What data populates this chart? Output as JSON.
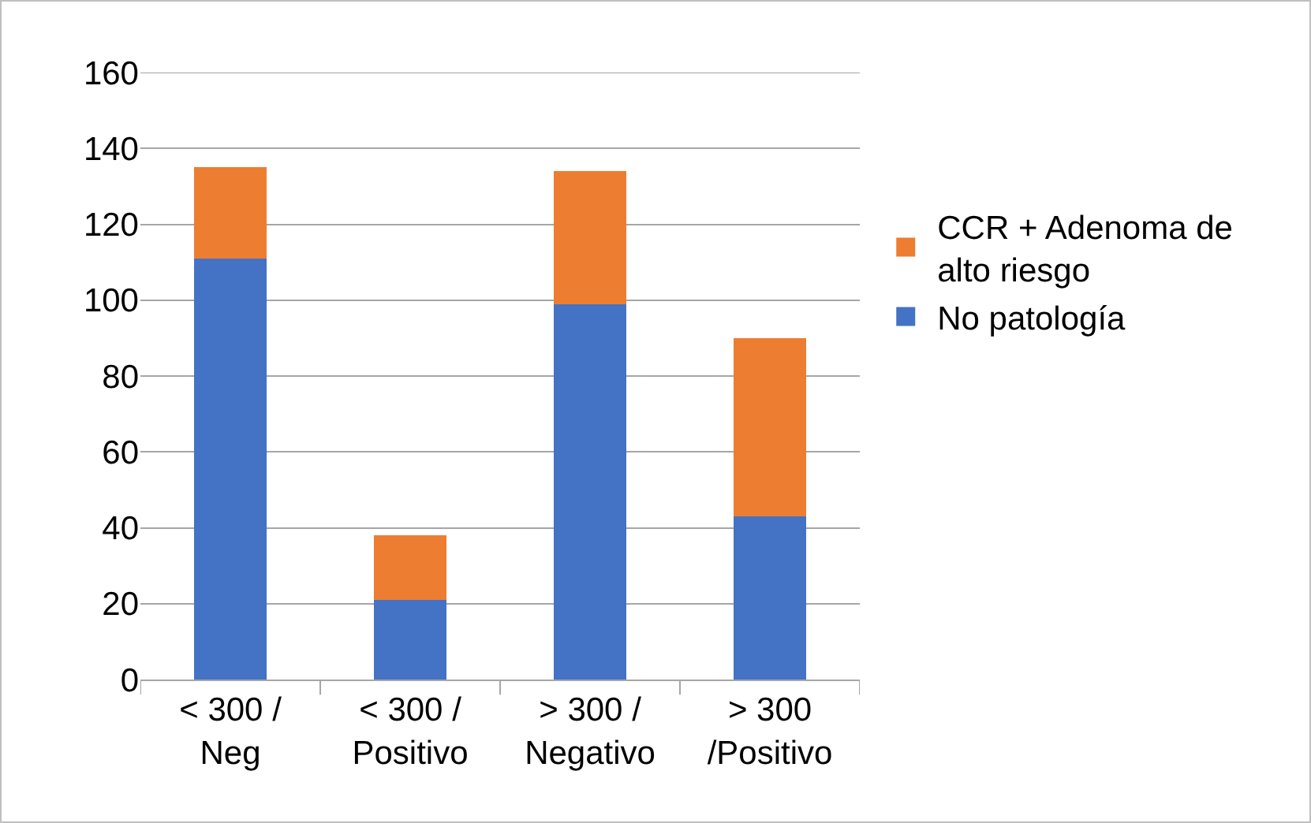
{
  "chart_data": {
    "type": "bar",
    "stacked": true,
    "categories": [
      "< 300 / Neg",
      "< 300 / Positivo",
      "> 300 / Negativo",
      "> 300 /Positivo"
    ],
    "series": [
      {
        "name": "No patología",
        "color": "#4472c4",
        "values": [
          111,
          21,
          99,
          43
        ]
      },
      {
        "name": "CCR + Adenoma de alto riesgo",
        "color": "#ed7d31",
        "values": [
          24,
          17,
          35,
          47
        ]
      }
    ],
    "ylim": [
      0,
      160
    ],
    "yticks": [
      0,
      20,
      40,
      60,
      80,
      100,
      120,
      140,
      160
    ],
    "grid": "y",
    "legend": "right"
  }
}
